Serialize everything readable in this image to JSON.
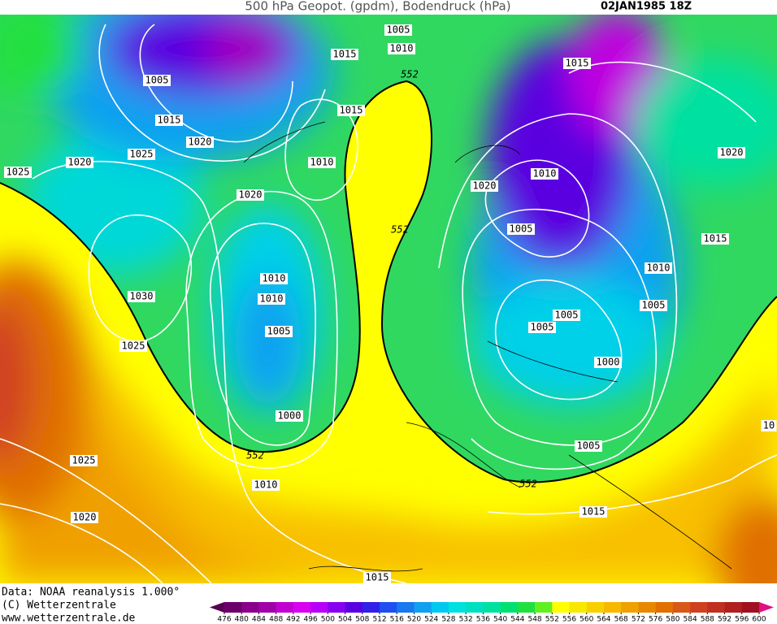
{
  "header": {
    "title": "500 hPa Geopot. (gpdm), Bodendruck (hPa)",
    "date": "02JAN1985 18Z"
  },
  "footer": [
    "Data: NOAA reanalysis 1.000°",
    "(C) Wetterzentrale",
    "www.wetterzentrale.de"
  ],
  "colorbar": {
    "ticks": [
      476,
      480,
      484,
      488,
      492,
      496,
      500,
      504,
      508,
      512,
      516,
      520,
      524,
      528,
      532,
      536,
      540,
      544,
      548,
      552,
      556,
      560,
      564,
      568,
      572,
      576,
      580,
      584,
      588,
      592,
      596,
      600
    ],
    "colors": [
      "#5a0050",
      "#6b006b",
      "#8a008a",
      "#a000a8",
      "#c000d0",
      "#d800f0",
      "#b800f8",
      "#8800f0",
      "#5a00e0",
      "#3020e8",
      "#2050f0",
      "#1a78f0",
      "#10a0f0",
      "#00c8f0",
      "#00e0e0",
      "#00e0c0",
      "#00e0a0",
      "#00e070",
      "#20e040",
      "#60f020",
      "#ffff00",
      "#f8e800",
      "#f8d000",
      "#f8b800",
      "#f0a000",
      "#e88800",
      "#e07000",
      "#d85818",
      "#d04020",
      "#c03020",
      "#b02020",
      "#a01020",
      "#e01080"
    ]
  },
  "isobar_labels": [
    "1005",
    "1010",
    "1015",
    "552",
    "1015",
    "1005",
    "1015",
    "1015",
    "1020",
    "1025",
    "1020",
    "1010",
    "1025",
    "1020",
    "1010",
    "1020",
    "1020",
    "552",
    "1005",
    "1015",
    "1010",
    "1010",
    "1030",
    "1010",
    "1005",
    "1005",
    "1005",
    "1005",
    "1025",
    "1000",
    "1000",
    "10",
    "1005",
    "552",
    "1025",
    "1010",
    "552",
    "1015",
    "1020",
    "1015"
  ]
}
